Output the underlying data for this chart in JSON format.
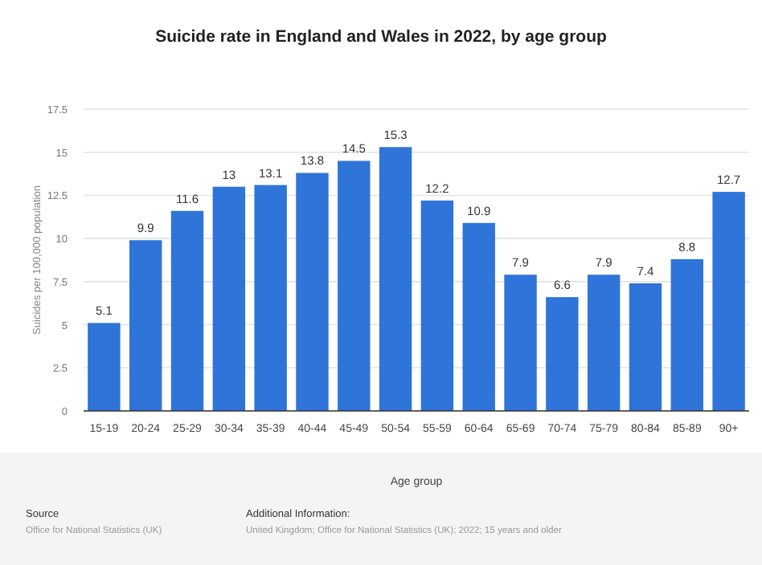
{
  "chart_data": {
    "type": "bar",
    "title": "Suicide rate in England and Wales in 2022, by age group",
    "xlabel": "Age group",
    "ylabel": "Suicides per 100,000 population",
    "categories": [
      "15-19",
      "20-24",
      "25-29",
      "30-34",
      "35-39",
      "40-44",
      "45-49",
      "50-54",
      "55-59",
      "60-64",
      "65-69",
      "70-74",
      "75-79",
      "80-84",
      "85-89",
      "90+"
    ],
    "values": [
      5.1,
      9.9,
      11.6,
      13,
      13.1,
      13.8,
      14.5,
      15.3,
      12.2,
      10.9,
      7.9,
      6.6,
      7.9,
      7.4,
      8.8,
      12.7
    ],
    "color": "#2f74d8",
    "ylim": [
      0,
      17.5
    ],
    "yticks": [
      0,
      2.5,
      5,
      7.5,
      10,
      12.5,
      15,
      17.5
    ],
    "grid": "y",
    "data_labels": true,
    "annotations": [
      "Source",
      "Office for National Statistics (UK)",
      "Additional Information:",
      "United Kingdom; Office for National Statistics (UK); 2022; 15 years and older"
    ]
  }
}
